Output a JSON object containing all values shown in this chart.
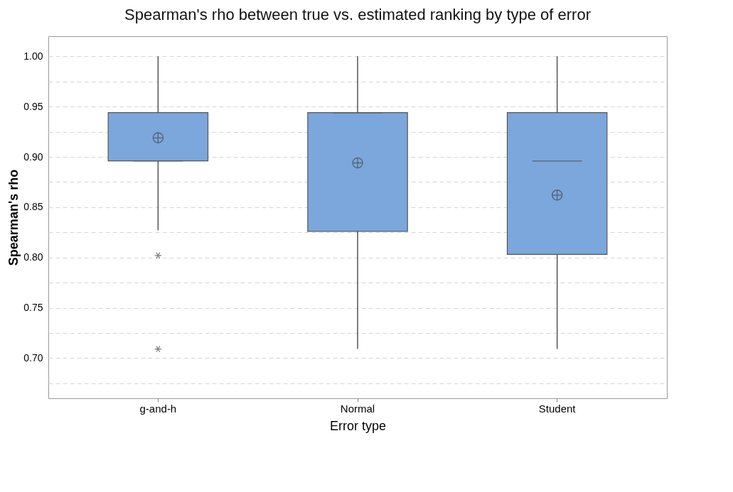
{
  "chart_data": {
    "type": "box",
    "title": "Spearman's rho between true vs. estimated ranking by type of error",
    "xlabel": "Error type",
    "ylabel": "Spearman's rho",
    "categories": [
      "g-and-h",
      "Normal",
      "Student"
    ],
    "color": "#7ba7dc",
    "boxes": [
      {
        "low": 0.827,
        "q1": 0.896,
        "median": 0.896,
        "q3": 0.944,
        "high": 1.0,
        "mean": 0.919,
        "outliers": [
          0.802,
          0.709
        ]
      },
      {
        "low": 0.709,
        "q1": 0.826,
        "median": 0.944,
        "q3": 0.944,
        "high": 1.0,
        "mean": 0.894
      },
      {
        "low": 0.709,
        "q1": 0.803,
        "median": 0.896,
        "q3": 0.944,
        "high": 1.0,
        "mean": 0.862
      }
    ],
    "ylim": [
      0.66,
      1.02
    ],
    "yticks": [
      {
        "value": 0.675,
        "label": null
      },
      {
        "value": 0.7,
        "label": "0.70"
      },
      {
        "value": 0.725,
        "label": null
      },
      {
        "value": 0.75,
        "label": "0.75"
      },
      {
        "value": 0.775,
        "label": null
      },
      {
        "value": 0.8,
        "label": "0.80"
      },
      {
        "value": 0.825,
        "label": null
      },
      {
        "value": 0.85,
        "label": "0.85"
      },
      {
        "value": 0.875,
        "label": null
      },
      {
        "value": 0.9,
        "label": "0.90"
      },
      {
        "value": 0.925,
        "label": null
      },
      {
        "value": 0.95,
        "label": "0.95"
      },
      {
        "value": 0.975,
        "label": null
      },
      {
        "value": 1.0,
        "label": "1.00"
      }
    ],
    "grid": "y"
  }
}
